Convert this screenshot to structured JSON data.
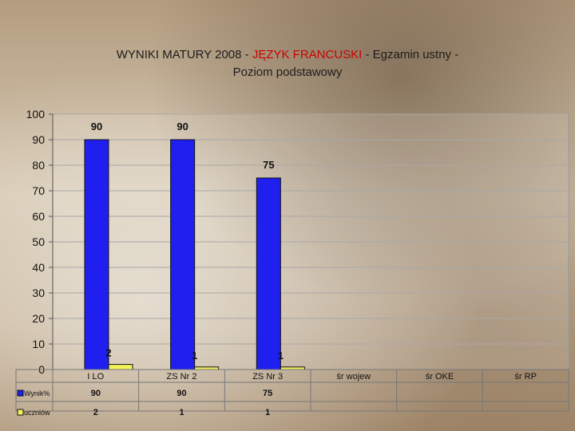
{
  "title_part1": "WYNIKI MATURY 2008 -  ",
  "title_accent": "JĘZYK FRANCUSKI",
  "title_part3": "  - Egzamin ustny -",
  "title_line2": "Poziom  podstawowy",
  "colors": {
    "series1": "#1f1ff0",
    "series2": "#f2f25a",
    "accent": "#cc0000",
    "plot_bg": "rgba(255,255,255,0.12)"
  },
  "chart_data": {
    "type": "bar",
    "categories": [
      "I LO",
      "ZS Nr 2",
      "ZS Nr 3",
      "śr  wojew",
      "śr  OKE",
      "śr  RP"
    ],
    "series": [
      {
        "name": "Wynik%",
        "values": [
          90,
          90,
          75,
          null,
          null,
          null
        ],
        "labels": [
          "90",
          "90",
          "75",
          "",
          "",
          ""
        ],
        "color": "#1f1ff0"
      },
      {
        "name": "uczniów",
        "values": [
          2,
          1,
          1,
          null,
          null,
          null
        ],
        "labels": [
          "2",
          "1",
          "1",
          "",
          "",
          ""
        ],
        "color": "#f2f25a"
      }
    ],
    "yticks": [
      "0",
      "10",
      "20",
      "30",
      "40",
      "50",
      "60",
      "70",
      "80",
      "90",
      "100"
    ],
    "ylim": [
      0,
      100
    ],
    "grid": true,
    "legend": "data-table-left"
  }
}
